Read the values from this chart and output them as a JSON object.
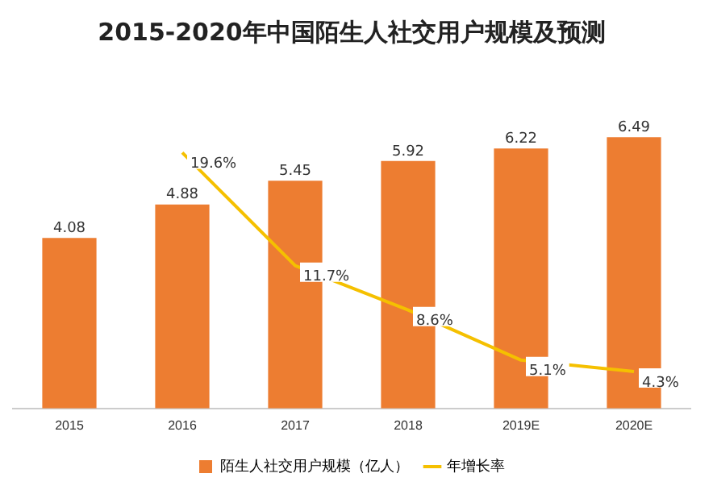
{
  "chart_data": {
    "type": "bar",
    "title": "2015-2020年中国陌生人社交用户规模及预测",
    "categories": [
      "2015",
      "2016",
      "2017",
      "2018",
      "2019E",
      "2020E"
    ],
    "series": [
      {
        "name": "陌生人社交用户规模（亿人）",
        "color": "#ed7d31",
        "values": [
          4.08,
          4.88,
          5.45,
          5.92,
          6.22,
          6.49
        ],
        "value_labels": [
          "4.08",
          "4.88",
          "5.45",
          "5.92",
          "6.22",
          "6.49"
        ]
      },
      {
        "name": "年增长率",
        "type": "line",
        "axis": "y2",
        "color": "#f5c000",
        "values": [
          null,
          19.6,
          11.7,
          8.6,
          5.1,
          4.3
        ],
        "value_labels": [
          null,
          "19.6%",
          "11.7%",
          "8.6%",
          "5.1%",
          "4.3%"
        ]
      }
    ],
    "legend": "bottom",
    "grid": false,
    "marker": "none"
  }
}
